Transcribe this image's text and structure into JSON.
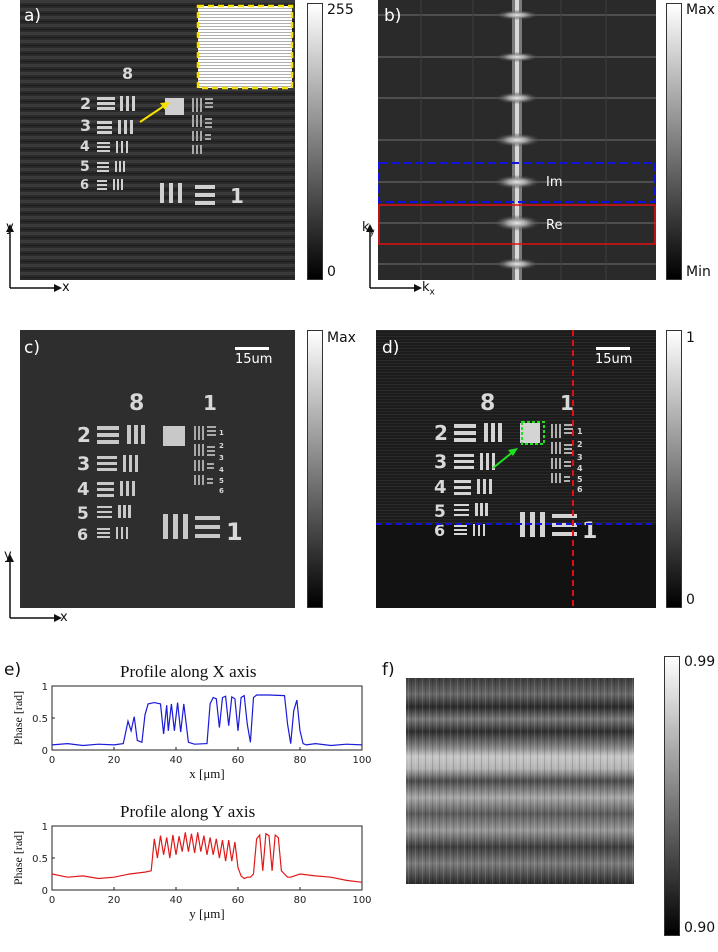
{
  "panel_labels": {
    "a": "a)",
    "b": "b)",
    "c": "c)",
    "d": "d)",
    "e": "e)",
    "f": "f)"
  },
  "axes_labels": {
    "x": "x",
    "y": "y",
    "kx": "k",
    "kx_sub": "x",
    "ky": "k",
    "ky_sub": "y"
  },
  "colorbars": {
    "a": {
      "max": "255",
      "min": "0"
    },
    "b": {
      "max": "Max",
      "min": "Min"
    },
    "c": {
      "max": "Max"
    },
    "d": {
      "max": "1",
      "min": "0"
    },
    "f": {
      "max": "0.99",
      "min": "0.90"
    }
  },
  "fourier_boxes": {
    "im": "Im",
    "re": "Re"
  },
  "scale_bar": "15um",
  "target_numbers": {
    "group_top": "8",
    "group_right": "1",
    "elements_left": [
      "2",
      "3",
      "4",
      "5",
      "6"
    ],
    "element_bottom": "1",
    "small_digits": [
      "1",
      "2",
      "3",
      "4",
      "5",
      "6"
    ]
  },
  "colors": {
    "yellow": "#f5e000",
    "blue": "#1010e0",
    "red": "#e01010",
    "green": "#20e020",
    "x_profile": "#1a1ad8",
    "y_profile": "#e01a1a"
  },
  "chart_data": [
    {
      "type": "line",
      "title": "Profile along X axis",
      "xlabel": "x [μm]",
      "ylabel": "Phase [rad]",
      "xlim": [
        0,
        100
      ],
      "ylim": [
        0,
        1
      ],
      "xticks": [
        "0",
        "20",
        "40",
        "60",
        "80",
        "100"
      ],
      "yticks": [
        "0",
        "0.5",
        "1"
      ],
      "series": [
        {
          "color": "#1a1ad8",
          "x": [
            0,
            5,
            10,
            15,
            20,
            23,
            24.5,
            25.5,
            26.5,
            27.5,
            29,
            30,
            31,
            33,
            35,
            36,
            37,
            37.5,
            38.5,
            39.5,
            40.5,
            41.5,
            42.5,
            44,
            46,
            50,
            51,
            52,
            53,
            54,
            55,
            56,
            57,
            58,
            59,
            60,
            61,
            62,
            63,
            64,
            65,
            66,
            70,
            75,
            76,
            77,
            78,
            79,
            80,
            81,
            82,
            85,
            90,
            95,
            100
          ],
          "y": [
            0.08,
            0.1,
            0.07,
            0.09,
            0.08,
            0.1,
            0.45,
            0.3,
            0.52,
            0.15,
            0.12,
            0.55,
            0.72,
            0.74,
            0.72,
            0.25,
            0.7,
            0.3,
            0.72,
            0.3,
            0.74,
            0.28,
            0.72,
            0.12,
            0.09,
            0.1,
            0.72,
            0.82,
            0.8,
            0.35,
            0.82,
            0.84,
            0.38,
            0.83,
            0.8,
            0.3,
            0.82,
            0.85,
            0.4,
            0.12,
            0.82,
            0.86,
            0.86,
            0.85,
            0.4,
            0.1,
            0.62,
            0.78,
            0.3,
            0.1,
            0.08,
            0.1,
            0.07,
            0.09,
            0.08
          ]
        }
      ]
    },
    {
      "type": "line",
      "title": "Profile along Y axis",
      "xlabel": "y [μm]",
      "ylabel": "Phase [rad]",
      "xlim": [
        0,
        100
      ],
      "ylim": [
        0,
        1
      ],
      "xticks": [
        "0",
        "20",
        "40",
        "60",
        "80",
        "100"
      ],
      "yticks": [
        "0",
        "0.5",
        "1"
      ],
      "series": [
        {
          "color": "#e01a1a",
          "x": [
            0,
            5,
            10,
            15,
            20,
            25,
            30,
            32,
            33,
            34,
            35,
            36,
            37,
            38,
            39,
            40,
            41,
            42,
            43,
            44,
            45,
            46,
            47,
            48,
            49,
            50,
            51,
            52,
            53,
            54,
            55,
            56,
            57,
            58,
            59,
            60,
            61,
            62,
            63,
            64,
            65,
            66,
            67,
            68,
            69,
            70,
            71,
            72,
            73,
            74,
            75,
            76,
            77,
            80,
            85,
            90,
            95,
            100
          ],
          "y": [
            0.25,
            0.2,
            0.22,
            0.18,
            0.2,
            0.25,
            0.28,
            0.3,
            0.8,
            0.5,
            0.85,
            0.55,
            0.82,
            0.5,
            0.86,
            0.55,
            0.84,
            0.6,
            0.9,
            0.6,
            0.88,
            0.58,
            0.9,
            0.6,
            0.85,
            0.55,
            0.82,
            0.55,
            0.8,
            0.5,
            0.78,
            0.45,
            0.78,
            0.45,
            0.75,
            0.35,
            0.22,
            0.18,
            0.2,
            0.2,
            0.25,
            0.8,
            0.86,
            0.3,
            0.88,
            0.85,
            0.3,
            0.86,
            0.82,
            0.3,
            0.25,
            0.2,
            0.2,
            0.25,
            0.22,
            0.2,
            0.15,
            0.12
          ]
        }
      ]
    }
  ]
}
